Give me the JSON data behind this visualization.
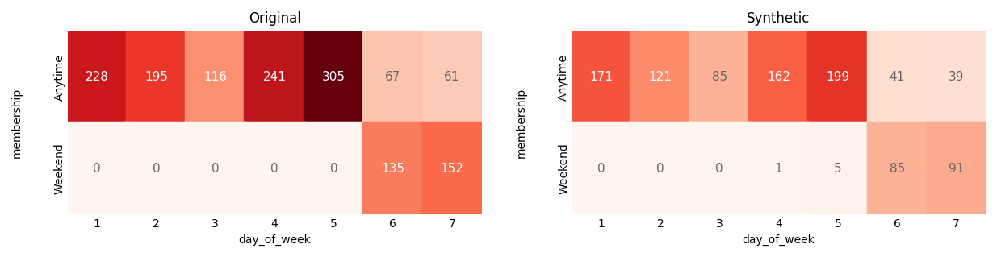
{
  "original": {
    "title": "Original",
    "rows": [
      "Anytime",
      "Weekend"
    ],
    "cols": [
      "1",
      "2",
      "3",
      "4",
      "5",
      "6",
      "7"
    ],
    "values": [
      [
        228,
        195,
        116,
        241,
        305,
        67,
        61
      ],
      [
        0,
        0,
        0,
        0,
        0,
        135,
        152
      ]
    ]
  },
  "synthetic": {
    "title": "Synthetic",
    "rows": [
      "Anytime",
      "Weekend"
    ],
    "cols": [
      "1",
      "2",
      "3",
      "4",
      "5",
      "6",
      "7"
    ],
    "values": [
      [
        171,
        121,
        85,
        162,
        199,
        41,
        39
      ],
      [
        0,
        0,
        0,
        1,
        5,
        85,
        91
      ]
    ]
  },
  "ylabel": "membership",
  "xlabel": "day_of_week",
  "vmin": 0,
  "vmax": 305,
  "cmap": "Reds",
  "text_color_light": "white",
  "text_color_dark": "#666666",
  "cell_linewidth": 2.5,
  "cell_linecolor": "white",
  "title_fontsize": 12,
  "tick_fontsize": 10,
  "label_fontsize": 10,
  "annot_fontsize": 11,
  "brightness_threshold": 0.72
}
